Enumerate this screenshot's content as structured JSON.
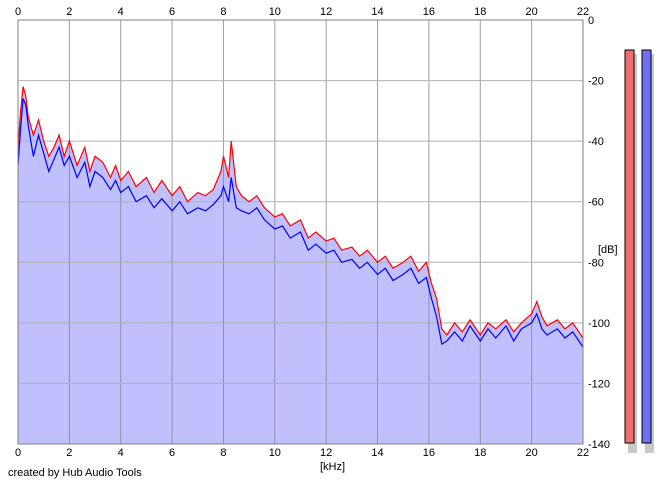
{
  "chart_data": {
    "type": "area",
    "xlabel": "[kHz]",
    "ylabel": "[dB]",
    "xlim": [
      0,
      22
    ],
    "ylim": [
      -140,
      0
    ],
    "x_ticks": [
      0,
      2,
      4,
      6,
      8,
      10,
      12,
      14,
      16,
      18,
      20,
      22
    ],
    "y_ticks": [
      0,
      -20,
      -40,
      -60,
      -80,
      -100,
      -120,
      -140
    ],
    "y_tick_labels": [
      "0",
      "-20",
      "-40",
      "-60",
      "-80",
      "-100",
      "-120",
      "-140"
    ],
    "grid": true,
    "fill_color": "#c0c0ff",
    "series": [
      {
        "color": "#ff0000",
        "x": [
          0,
          0.1,
          0.2,
          0.3,
          0.4,
          0.5,
          0.6,
          0.8,
          1.0,
          1.2,
          1.4,
          1.6,
          1.8,
          2.0,
          2.3,
          2.6,
          2.8,
          3.0,
          3.3,
          3.6,
          3.8,
          4.0,
          4.3,
          4.6,
          5.0,
          5.3,
          5.6,
          6.0,
          6.3,
          6.6,
          7.0,
          7.3,
          7.6,
          7.9,
          8.0,
          8.2,
          8.3,
          8.5,
          8.7,
          9.0,
          9.3,
          9.6,
          10.0,
          10.3,
          10.6,
          11.0,
          11.3,
          11.6,
          12.0,
          12.3,
          12.6,
          13.0,
          13.3,
          13.6,
          14.0,
          14.3,
          14.6,
          15.0,
          15.3,
          15.6,
          15.9,
          16.1,
          16.3,
          16.5,
          16.7,
          17.0,
          17.3,
          17.6,
          18.0,
          18.3,
          18.6,
          19.0,
          19.3,
          19.6,
          20.0,
          20.2,
          20.4,
          20.6,
          21.0,
          21.3,
          21.6,
          22.0
        ],
        "values": [
          -42,
          -30,
          -22,
          -25,
          -32,
          -35,
          -38,
          -33,
          -40,
          -45,
          -42,
          -38,
          -45,
          -40,
          -48,
          -42,
          -50,
          -45,
          -47,
          -52,
          -48,
          -53,
          -50,
          -55,
          -52,
          -57,
          -53,
          -58,
          -55,
          -60,
          -57,
          -58,
          -56,
          -50,
          -45,
          -52,
          -40,
          -55,
          -58,
          -60,
          -58,
          -62,
          -65,
          -64,
          -68,
          -66,
          -72,
          -70,
          -73,
          -72,
          -76,
          -75,
          -78,
          -76,
          -80,
          -78,
          -82,
          -80,
          -78,
          -83,
          -80,
          -87,
          -92,
          -102,
          -104,
          -100,
          -103,
          -99,
          -104,
          -100,
          -102,
          -99,
          -103,
          -100,
          -97,
          -93,
          -98,
          -101,
          -99,
          -102,
          -100,
          -105
        ]
      },
      {
        "color": "#0000ff",
        "x": [
          0,
          0.1,
          0.2,
          0.3,
          0.4,
          0.5,
          0.6,
          0.8,
          1.0,
          1.2,
          1.4,
          1.6,
          1.8,
          2.0,
          2.3,
          2.6,
          2.8,
          3.0,
          3.3,
          3.6,
          3.8,
          4.0,
          4.3,
          4.6,
          5.0,
          5.3,
          5.6,
          6.0,
          6.3,
          6.6,
          7.0,
          7.3,
          7.6,
          7.9,
          8.0,
          8.2,
          8.3,
          8.5,
          8.7,
          9.0,
          9.3,
          9.6,
          10.0,
          10.3,
          10.6,
          11.0,
          11.3,
          11.6,
          12.0,
          12.3,
          12.6,
          13.0,
          13.3,
          13.6,
          14.0,
          14.3,
          14.6,
          15.0,
          15.3,
          15.6,
          15.9,
          16.1,
          16.3,
          16.5,
          16.7,
          17.0,
          17.3,
          17.6,
          18.0,
          18.3,
          18.6,
          19.0,
          19.3,
          19.6,
          20.0,
          20.2,
          20.4,
          20.6,
          21.0,
          21.3,
          21.6,
          22.0
        ],
        "values": [
          -48,
          -36,
          -26,
          -28,
          -35,
          -40,
          -45,
          -38,
          -44,
          -50,
          -46,
          -42,
          -48,
          -45,
          -52,
          -47,
          -55,
          -50,
          -52,
          -56,
          -53,
          -57,
          -55,
          -60,
          -58,
          -62,
          -59,
          -63,
          -60,
          -64,
          -62,
          -63,
          -61,
          -58,
          -55,
          -60,
          -52,
          -62,
          -63,
          -64,
          -62,
          -66,
          -69,
          -68,
          -72,
          -70,
          -76,
          -74,
          -77,
          -76,
          -80,
          -79,
          -82,
          -80,
          -84,
          -82,
          -86,
          -84,
          -82,
          -87,
          -85,
          -92,
          -98,
          -107,
          -106,
          -103,
          -106,
          -101,
          -106,
          -102,
          -105,
          -101,
          -106,
          -102,
          -100,
          -97,
          -102,
          -104,
          -102,
          -105,
          -103,
          -108
        ]
      }
    ],
    "level_meters": [
      {
        "color": "#f07070",
        "level": 1.0
      },
      {
        "color": "#7070f0",
        "level": 1.0
      }
    ]
  },
  "footer": {
    "credit": "created by Hub Audio Tools"
  }
}
